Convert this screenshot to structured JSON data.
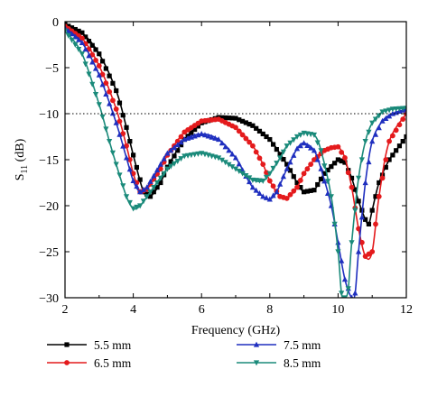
{
  "chart_data": {
    "type": "line",
    "xlabel": "Frequency (GHz)",
    "ylabel_main": "S",
    "ylabel_sub": "11",
    "ylabel_unit": " (dB)",
    "xlim": [
      2,
      12
    ],
    "ylim": [
      -30,
      0
    ],
    "xticks": [
      2,
      4,
      6,
      8,
      10,
      12
    ],
    "yticks": [
      0,
      -5,
      -10,
      -15,
      -20,
      -25,
      -30
    ],
    "grid": false,
    "legend_position": "bottom",
    "reference_line": {
      "y": -10,
      "style": "dotted"
    },
    "series": [
      {
        "name": "5.5 mm",
        "color": "#000000",
        "marker": "square",
        "x": [
          2.0,
          2.5,
          3.0,
          3.5,
          3.8,
          4.0,
          4.3,
          4.5,
          4.8,
          5.0,
          5.5,
          6.0,
          6.5,
          7.0,
          7.5,
          8.0,
          8.5,
          8.8,
          9.0,
          9.3,
          9.6,
          10.0,
          10.2,
          10.4,
          10.6,
          10.8,
          10.9,
          11.0,
          11.2,
          11.5,
          11.8,
          12.0
        ],
        "y": [
          -0.3,
          -1.2,
          -3.5,
          -7.5,
          -11.5,
          -14.5,
          -18.5,
          -19.0,
          -17.5,
          -15.8,
          -12.8,
          -11.0,
          -10.4,
          -10.5,
          -11.3,
          -12.8,
          -15.5,
          -17.5,
          -18.5,
          -18.3,
          -16.5,
          -15.0,
          -15.3,
          -17.0,
          -19.5,
          -21.5,
          -22.0,
          -20.5,
          -17.5,
          -15.0,
          -13.5,
          -12.5
        ]
      },
      {
        "name": "6.5 mm",
        "color": "#e41a1c",
        "marker": "circle",
        "x": [
          2.0,
          2.5,
          3.0,
          3.5,
          3.8,
          4.0,
          4.2,
          4.4,
          4.8,
          5.0,
          5.5,
          6.0,
          6.5,
          7.0,
          7.5,
          7.8,
          8.0,
          8.3,
          8.5,
          8.8,
          9.0,
          9.3,
          9.6,
          9.8,
          10.0,
          10.2,
          10.4,
          10.6,
          10.8,
          11.0,
          11.2,
          11.5,
          12.0
        ],
        "y": [
          -0.5,
          -1.8,
          -4.8,
          -9.5,
          -13.5,
          -16.5,
          -18.5,
          -18.2,
          -16.0,
          -14.5,
          -12.0,
          -10.8,
          -10.6,
          -11.5,
          -13.5,
          -15.5,
          -17.3,
          -19.0,
          -19.2,
          -18.0,
          -16.5,
          -15.0,
          -14.0,
          -13.7,
          -13.6,
          -14.8,
          -18.0,
          -22.5,
          -25.5,
          -25.0,
          -19.0,
          -13.0,
          -10.0
        ]
      },
      {
        "name": "7.5 mm",
        "color": "#1f2fbf",
        "marker": "triangle-up",
        "x": [
          2.0,
          2.5,
          3.0,
          3.5,
          3.8,
          4.0,
          4.2,
          4.4,
          4.8,
          5.0,
          5.5,
          6.0,
          6.5,
          7.0,
          7.3,
          7.5,
          7.8,
          8.0,
          8.2,
          8.5,
          8.8,
          9.0,
          9.3,
          9.5,
          9.8,
          10.0,
          10.2,
          10.4,
          10.5,
          10.6,
          10.8,
          11.0,
          11.3,
          11.6,
          12.0
        ],
        "y": [
          -0.7,
          -2.3,
          -5.8,
          -11.0,
          -14.8,
          -17.3,
          -18.5,
          -18.0,
          -15.5,
          -14.3,
          -12.8,
          -12.2,
          -12.8,
          -14.8,
          -16.8,
          -18.0,
          -19.0,
          -19.3,
          -18.5,
          -16.0,
          -13.8,
          -13.2,
          -14.0,
          -16.0,
          -20.0,
          -24.0,
          -28.0,
          -30.0,
          -29.5,
          -25.0,
          -17.5,
          -13.0,
          -10.8,
          -10.0,
          -9.5
        ]
      },
      {
        "name": "8.5 mm",
        "color": "#1a8a7a",
        "marker": "triangle-down",
        "x": [
          2.0,
          2.5,
          3.0,
          3.3,
          3.5,
          3.8,
          4.0,
          4.2,
          4.5,
          5.0,
          5.5,
          6.0,
          6.5,
          7.0,
          7.5,
          7.8,
          8.0,
          8.3,
          8.5,
          8.8,
          9.0,
          9.3,
          9.5,
          9.8,
          10.0,
          10.1,
          10.2,
          10.3,
          10.4,
          10.6,
          10.8,
          11.0,
          11.3,
          11.6,
          12.0
        ],
        "y": [
          -1.0,
          -3.5,
          -9.0,
          -13.0,
          -15.5,
          -19.0,
          -20.3,
          -20.0,
          -18.5,
          -16.0,
          -14.6,
          -14.3,
          -14.8,
          -16.0,
          -17.2,
          -17.3,
          -16.5,
          -14.8,
          -13.5,
          -12.5,
          -12.1,
          -12.3,
          -14.0,
          -19.0,
          -25.0,
          -29.5,
          -30.0,
          -29.0,
          -24.0,
          -17.0,
          -13.0,
          -11.0,
          -9.8,
          -9.5,
          -9.4
        ]
      }
    ]
  }
}
